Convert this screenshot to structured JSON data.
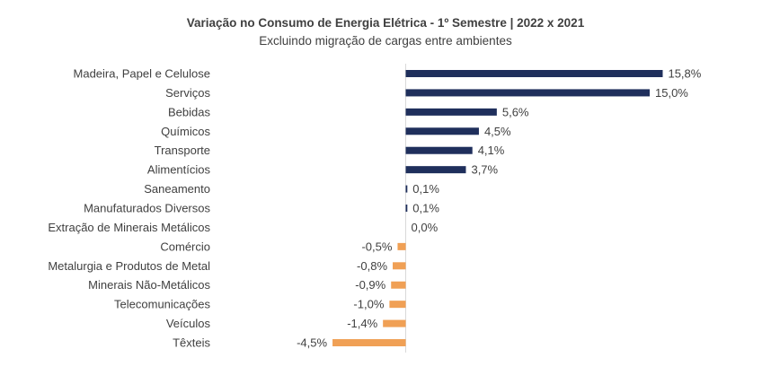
{
  "chart_data": {
    "type": "bar",
    "orientation": "horizontal",
    "title": "Variação no Consumo de Energia Elétrica - 1º Semestre | 2022 x 2021",
    "subtitle": "Excluindo migração de cargas entre ambientes",
    "categories": [
      "Madeira, Papel e Celulose",
      "Serviços",
      "Bebidas",
      "Químicos",
      "Transporte",
      "Alimentícios",
      "Saneamento",
      "Manufaturados Diversos",
      "Extração de Minerais Metálicos",
      "Comércio",
      "Metalurgia e Produtos de Metal",
      "Minerais Não-Metálicos",
      "Telecomunicações",
      "Veículos",
      "Têxteis"
    ],
    "values": [
      15.8,
      15.0,
      5.6,
      4.5,
      4.1,
      3.7,
      0.1,
      0.1,
      0.0,
      -0.5,
      -0.8,
      -0.9,
      -1.0,
      -1.4,
      -4.5
    ],
    "data_labels": [
      "15,8%",
      "15,0%",
      "5,6%",
      "4,5%",
      "4,1%",
      "3,7%",
      "0,1%",
      "0,1%",
      "0,0%",
      "-0,5%",
      "-0,8%",
      "-0,9%",
      "-1,0%",
      "-1,4%",
      "-4,5%"
    ],
    "positive_color": "#1f2f5c",
    "negative_color": "#f0a055",
    "axis_line_color": "#d9d9d9",
    "xlim": [
      -4.5,
      15.8
    ],
    "grid": false,
    "legend": "none"
  }
}
